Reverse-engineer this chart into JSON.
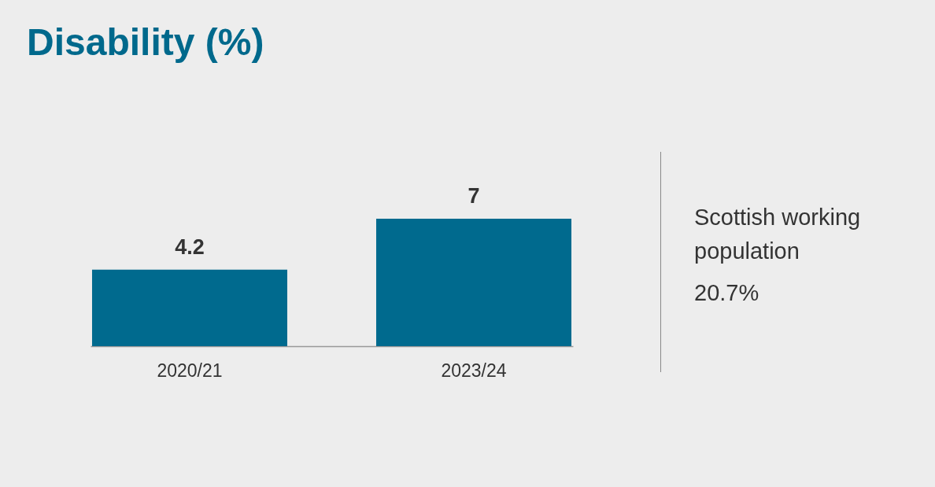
{
  "chart_data": {
    "type": "bar",
    "title": "Disability (%)",
    "categories": [
      "2020/21",
      "2023/24"
    ],
    "values": [
      4.2,
      7
    ],
    "color": "#006a8e",
    "data_labels": true,
    "annotations": [
      "Scottish working population",
      "20.7%"
    ]
  }
}
